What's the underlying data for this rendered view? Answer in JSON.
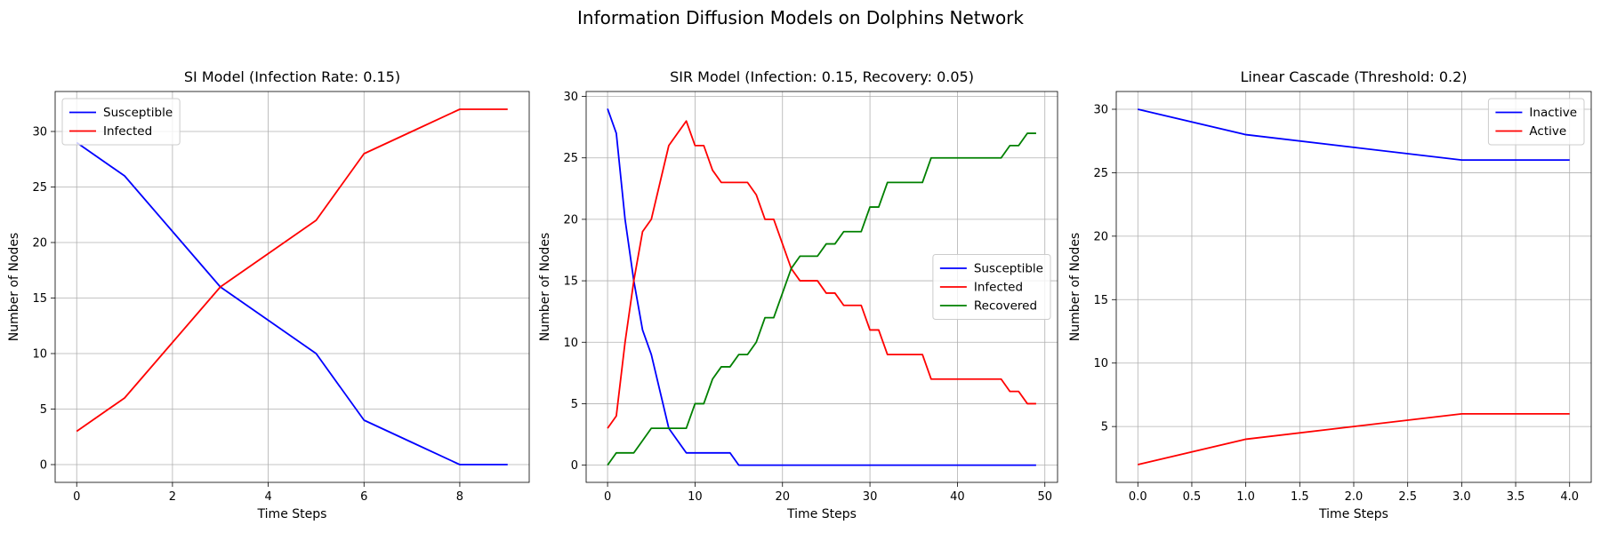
{
  "figure": {
    "title": "Information Diffusion Models on Dolphins Network"
  },
  "colors": {
    "Susceptible": "#0000ff",
    "Infected": "#ff0000",
    "Recovered": "#008000",
    "Inactive": "#0000ff",
    "Active": "#ff0000"
  },
  "chart_data": [
    {
      "type": "line",
      "title": "SI Model (Infection Rate: 0.15)",
      "xlabel": "Time Steps",
      "ylabel": "Number of Nodes",
      "xlim": [
        -0.45,
        9.45
      ],
      "ylim": [
        -1.6,
        33.6
      ],
      "xticks": [
        0,
        2,
        4,
        6,
        8
      ],
      "xtick_labels": [
        "0",
        "2",
        "4",
        "6",
        "8"
      ],
      "yticks": [
        0,
        5,
        10,
        15,
        20,
        25,
        30
      ],
      "ytick_labels": [
        "0",
        "5",
        "10",
        "15",
        "20",
        "25",
        "30"
      ],
      "grid": true,
      "legend_position": "upper-left",
      "x": [
        0,
        1,
        2,
        3,
        4,
        5,
        6,
        7,
        8,
        9
      ],
      "series": [
        {
          "name": "Susceptible",
          "color": "#0000ff",
          "values": [
            29,
            26,
            21,
            16,
            13,
            10,
            4,
            2,
            0,
            0
          ]
        },
        {
          "name": "Infected",
          "color": "#ff0000",
          "values": [
            3,
            6,
            11,
            16,
            19,
            22,
            28,
            30,
            32,
            32
          ]
        }
      ]
    },
    {
      "type": "line",
      "title": "SIR Model (Infection: 0.15, Recovery: 0.05)",
      "xlabel": "Time Steps",
      "ylabel": "Number of Nodes",
      "xlim": [
        -2.45,
        51.45
      ],
      "ylim": [
        -1.4,
        30.4
      ],
      "xticks": [
        0,
        10,
        20,
        30,
        40,
        50
      ],
      "xtick_labels": [
        "0",
        "10",
        "20",
        "30",
        "40",
        "50"
      ],
      "yticks": [
        0,
        5,
        10,
        15,
        20,
        25,
        30
      ],
      "ytick_labels": [
        "0",
        "5",
        "10",
        "15",
        "20",
        "25",
        "30"
      ],
      "grid": true,
      "legend_position": "center-right",
      "x": [
        0,
        1,
        2,
        3,
        4,
        5,
        6,
        7,
        8,
        9,
        10,
        11,
        12,
        13,
        14,
        15,
        16,
        17,
        18,
        19,
        20,
        21,
        22,
        23,
        24,
        25,
        26,
        27,
        28,
        29,
        30,
        31,
        32,
        33,
        34,
        35,
        36,
        37,
        38,
        39,
        40,
        41,
        42,
        43,
        44,
        45,
        46,
        47,
        48,
        49
      ],
      "series": [
        {
          "name": "Susceptible",
          "color": "#0000ff",
          "values": [
            29,
            27,
            20,
            15,
            11,
            9,
            6,
            3,
            2,
            1,
            1,
            1,
            1,
            1,
            1,
            0,
            0,
            0,
            0,
            0,
            0,
            0,
            0,
            0,
            0,
            0,
            0,
            0,
            0,
            0,
            0,
            0,
            0,
            0,
            0,
            0,
            0,
            0,
            0,
            0,
            0,
            0,
            0,
            0,
            0,
            0,
            0,
            0,
            0,
            0
          ]
        },
        {
          "name": "Infected",
          "color": "#ff0000",
          "values": [
            3,
            4,
            10,
            15,
            19,
            20,
            23,
            26,
            27,
            28,
            26,
            26,
            24,
            23,
            23,
            23,
            23,
            22,
            20,
            20,
            18,
            16,
            15,
            15,
            15,
            14,
            14,
            13,
            13,
            13,
            11,
            11,
            9,
            9,
            9,
            9,
            9,
            7,
            7,
            7,
            7,
            7,
            7,
            7,
            7,
            7,
            6,
            6,
            5,
            5
          ]
        },
        {
          "name": "Recovered",
          "color": "#008000",
          "values": [
            0,
            1,
            1,
            1,
            2,
            3,
            3,
            3,
            3,
            3,
            5,
            5,
            7,
            8,
            8,
            9,
            9,
            10,
            12,
            12,
            14,
            16,
            17,
            17,
            17,
            18,
            18,
            19,
            19,
            19,
            21,
            21,
            23,
            23,
            23,
            23,
            23,
            25,
            25,
            25,
            25,
            25,
            25,
            25,
            25,
            25,
            26,
            26,
            27,
            27
          ]
        }
      ]
    },
    {
      "type": "line",
      "title": "Linear Cascade (Threshold: 0.2)",
      "xlabel": "Time Steps",
      "ylabel": "Number of Nodes",
      "xlim": [
        -0.2,
        4.2
      ],
      "ylim": [
        0.6,
        31.4
      ],
      "xticks": [
        0,
        0.5,
        1,
        1.5,
        2,
        2.5,
        3,
        3.5,
        4
      ],
      "xtick_labels": [
        "0.0",
        "0.5",
        "1.0",
        "1.5",
        "2.0",
        "2.5",
        "3.0",
        "3.5",
        "4.0"
      ],
      "yticks": [
        5,
        10,
        15,
        20,
        25,
        30
      ],
      "ytick_labels": [
        "5",
        "10",
        "15",
        "20",
        "25",
        "30"
      ],
      "grid": true,
      "legend_position": "upper-right",
      "x": [
        0,
        1,
        2,
        3,
        4
      ],
      "series": [
        {
          "name": "Inactive",
          "color": "#0000ff",
          "values": [
            30,
            28,
            27,
            26,
            26
          ]
        },
        {
          "name": "Active",
          "color": "#ff0000",
          "values": [
            2,
            4,
            5,
            6,
            6
          ]
        }
      ]
    }
  ]
}
